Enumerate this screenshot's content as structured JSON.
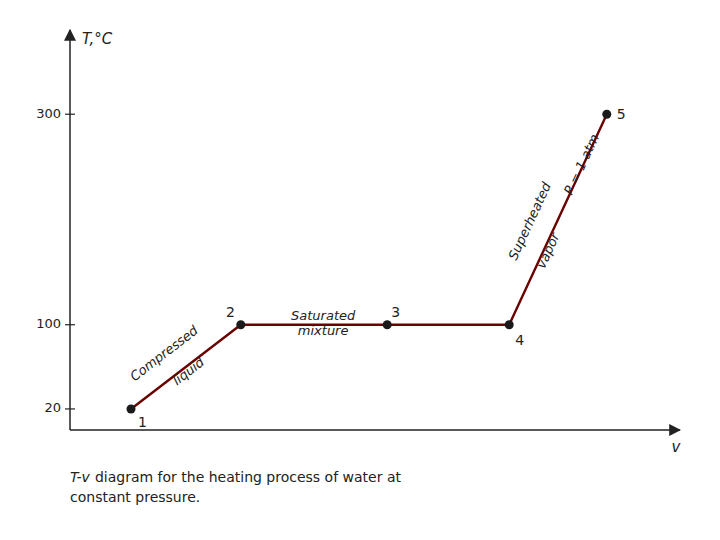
{
  "chart_data": {
    "type": "line",
    "xlabel": "v",
    "ylabel": "T,°C",
    "x": [
      0.1,
      0.28,
      0.52,
      0.72,
      0.88
    ],
    "values": [
      20,
      100,
      100,
      100,
      300
    ],
    "point_labels": [
      "1",
      "2",
      "3",
      "4",
      "5"
    ],
    "color": "#6b0000",
    "marker": "circle",
    "xlim": [
      0.0,
      1.0
    ],
    "ylim": [
      0,
      380
    ],
    "yticks": [
      20,
      100,
      300
    ],
    "tick_labels": "y",
    "annotations": [
      {
        "text": "Compressed",
        "x": 0.155,
        "y": 72
      },
      {
        "text": "liquid",
        "x": 0.195,
        "y": 55
      },
      {
        "text": "Saturated",
        "x": 0.415,
        "y": 108
      },
      {
        "text": "mixture",
        "x": 0.415,
        "y": 94
      },
      {
        "text": "Superheated",
        "x": 0.755,
        "y": 198
      },
      {
        "text": "vapor",
        "x": 0.785,
        "y": 170
      },
      {
        "text": "P = 1 atm",
        "x": 0.84,
        "y": 252
      }
    ],
    "caption": [
      "T-v",
      "diagram for the heating process of water at",
      "constant pressure."
    ]
  }
}
